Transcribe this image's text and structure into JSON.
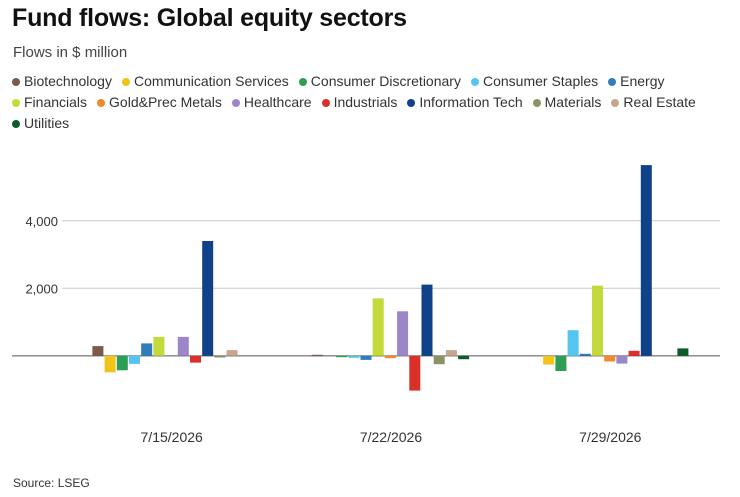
{
  "header": {
    "title": "Fund flows: Global equity sectors",
    "subtitle": "Flows in $ million"
  },
  "footer": {
    "source": "Source: LSEG"
  },
  "chart_data": {
    "type": "bar",
    "title": "Fund flows: Global equity sectors",
    "subtitle": "Flows in $ million",
    "xlabel": "",
    "ylabel": "",
    "categories": [
      "7/15/2026",
      "7/22/2026",
      "7/29/2026"
    ],
    "y_ticks": [
      2000,
      4000
    ],
    "y_tick_labels": [
      "2,000",
      "4,000"
    ],
    "ylim": [
      -1900,
      5800
    ],
    "grid": true,
    "legend_placement": "top",
    "series": [
      {
        "name": "Biotechnology",
        "color": "#7b5a4b",
        "values": [
          290,
          30,
          0
        ]
      },
      {
        "name": "Communication Services",
        "color": "#f2c318",
        "values": [
          -490,
          0,
          -260
        ]
      },
      {
        "name": "Consumer Discretionary",
        "color": "#2e9e56",
        "values": [
          -430,
          -40,
          -450
        ]
      },
      {
        "name": "Consumer Staples",
        "color": "#55c5f0",
        "values": [
          -240,
          -60,
          760
        ]
      },
      {
        "name": "Energy",
        "color": "#2f7dbd",
        "values": [
          370,
          -120,
          60
        ]
      },
      {
        "name": "Financials",
        "color": "#c4d93a",
        "values": [
          560,
          1700,
          2080
        ]
      },
      {
        "name": "Gold&Prec Metals",
        "color": "#f08a2a",
        "values": [
          0,
          -70,
          -170
        ]
      },
      {
        "name": "Healthcare",
        "color": "#9b86c8",
        "values": [
          560,
          1320,
          -230
        ]
      },
      {
        "name": "Industrials",
        "color": "#d9302a",
        "values": [
          -200,
          -1030,
          150
        ]
      },
      {
        "name": "Information Tech",
        "color": "#0f4289",
        "values": [
          3400,
          2110,
          5650
        ]
      },
      {
        "name": "Materials",
        "color": "#8a9366",
        "values": [
          -50,
          -250,
          0
        ]
      },
      {
        "name": "Real Estate",
        "color": "#c9a58e",
        "values": [
          170,
          170,
          0
        ]
      },
      {
        "name": "Utilities",
        "color": "#0e5b2c",
        "values": [
          0,
          -100,
          220
        ]
      }
    ]
  }
}
